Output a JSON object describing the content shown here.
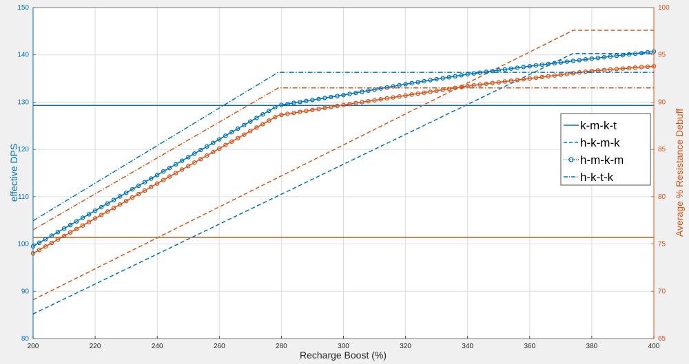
{
  "chart_data": {
    "type": "line",
    "xlabel": "Recharge Boost (%)",
    "ylabel_left": "effective DPS",
    "ylabel_right": "Average % Resistance Debuff",
    "xlim": [
      200,
      400
    ],
    "ylim_left": [
      80,
      150
    ],
    "ylim_right": [
      65,
      100
    ],
    "xticks": [
      200,
      220,
      240,
      260,
      280,
      300,
      320,
      340,
      360,
      380,
      400
    ],
    "yticks_left": [
      80,
      90,
      100,
      110,
      120,
      130,
      140,
      150
    ],
    "yticks_right": [
      65,
      70,
      75,
      80,
      85,
      90,
      95,
      100
    ],
    "grid": true,
    "legend_position": "right",
    "legend": [
      "k-m-k-t",
      "h-k-m-k",
      "h-m-k-m",
      "h-k-t-k"
    ],
    "colors": {
      "left_axis": "#0072bd",
      "right_axis": "#d95319"
    },
    "series": [
      {
        "name": "k-m-k-t",
        "axis": "left",
        "style": "solid",
        "color": "#0072bd",
        "x": [
          200,
          400
        ],
        "y": [
          129.3,
          129.3
        ]
      },
      {
        "name": "k-m-k-t",
        "axis": "right",
        "style": "solid",
        "color": "#d95319",
        "x": [
          200,
          400
        ],
        "y": [
          75.7,
          75.7
        ]
      },
      {
        "name": "h-k-m-k",
        "axis": "left",
        "style": "dashed",
        "color": "#0072bd",
        "x": [
          200,
          374,
          400
        ],
        "y": [
          85.2,
          140.3,
          140.3
        ]
      },
      {
        "name": "h-k-m-k",
        "axis": "right",
        "style": "dashed",
        "color": "#d95319",
        "x": [
          200,
          374,
          400
        ],
        "y": [
          69.1,
          97.6,
          97.6
        ]
      },
      {
        "name": "h-m-k-m",
        "axis": "left",
        "style": "circles",
        "color": "#0072bd",
        "x": [
          200,
          279,
          300,
          320,
          340,
          360,
          380,
          400
        ],
        "y": [
          99.5,
          129.3,
          131.5,
          133.8,
          135.9,
          137.6,
          139.2,
          140.7
        ]
      },
      {
        "name": "h-m-k-m",
        "axis": "right",
        "style": "circles",
        "color": "#d95319",
        "x": [
          200,
          279,
          300,
          320,
          340,
          360,
          380,
          400
        ],
        "y": [
          74.0,
          88.6,
          89.7,
          90.7,
          91.7,
          92.5,
          93.3,
          93.8
        ]
      },
      {
        "name": "h-k-t-k",
        "axis": "left",
        "style": "dashdot",
        "color": "#0072bd",
        "x": [
          200,
          279,
          400
        ],
        "y": [
          104.9,
          136.3,
          136.3
        ]
      },
      {
        "name": "h-k-t-k",
        "axis": "right",
        "style": "dashdot",
        "color": "#d95319",
        "x": [
          200,
          279,
          400
        ],
        "y": [
          76.5,
          91.5,
          91.5
        ]
      }
    ]
  }
}
